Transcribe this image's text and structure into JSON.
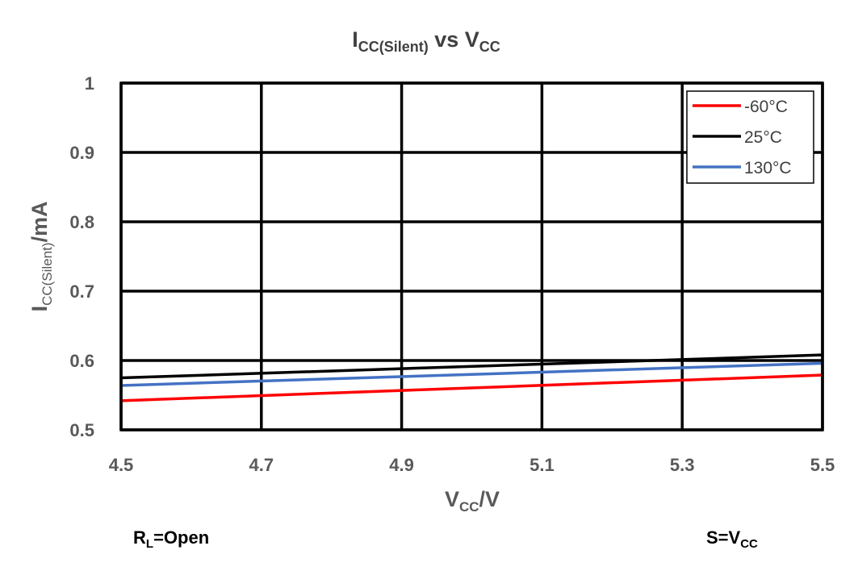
{
  "chart_data": {
    "type": "line",
    "title": {
      "main": "I",
      "sub": "CC(Silent)",
      "mid": " vs V",
      "sub2": "CC"
    },
    "xlabel": {
      "main": "V",
      "sub": "CC",
      "rest": "/V"
    },
    "ylabel": {
      "main": "I",
      "sub": "CC(Silent)",
      "rest": "/mA"
    },
    "xlim": [
      4.5,
      5.5
    ],
    "ylim": [
      0.5,
      1.0
    ],
    "x_ticks": [
      "4.5",
      "4.7",
      "4.9",
      "5.1",
      "5.3",
      "5.5"
    ],
    "y_ticks": [
      "0.5",
      "0.6",
      "0.7",
      "0.8",
      "0.9",
      "1"
    ],
    "grid": true,
    "legend_position": "top-right",
    "series": [
      {
        "name": "-60°C",
        "color": "#ff0000",
        "x": [
          4.5,
          5.5
        ],
        "y": [
          0.542,
          0.579
        ]
      },
      {
        "name": "25°C",
        "color": "#000000",
        "x": [
          4.5,
          5.5
        ],
        "y": [
          0.575,
          0.608
        ]
      },
      {
        "name": "130°C",
        "color": "#4472c4",
        "x": [
          4.5,
          5.5
        ],
        "y": [
          0.564,
          0.596
        ]
      }
    ]
  },
  "notes": {
    "left": {
      "main": "R",
      "sub": "L",
      "rest": "=Open"
    },
    "right": {
      "main": "S=V",
      "sub": "CC"
    }
  }
}
